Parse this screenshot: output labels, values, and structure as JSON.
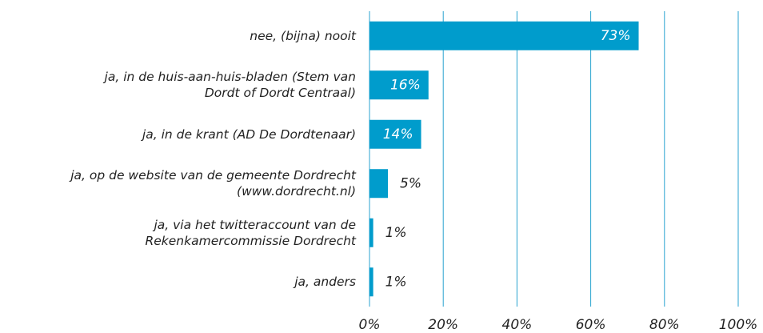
{
  "chart_data": {
    "type": "bar",
    "orientation": "horizontal",
    "categories": [
      "nee, (bijna) nooit",
      "ja, in de huis-aan-huis-bladen (Stem van\nDordt of Dordt Centraal)",
      "ja, in de krant (AD De Dordtenaar)",
      "ja, op de website van de gemeente Dordrecht\n(www.dordrecht.nl)",
      "ja, via het twitteraccount van de\nRekenkamercommissie Dordrecht",
      "ja, anders"
    ],
    "values": [
      73,
      16,
      14,
      5,
      1,
      1
    ],
    "value_labels": [
      "73%",
      "16%",
      "14%",
      "5%",
      "1%",
      "1%"
    ],
    "color": "#009ccc",
    "xlim": [
      0,
      100
    ],
    "xticks": [
      {
        "value": 0,
        "label": "0%"
      },
      {
        "value": 20,
        "label": "20%"
      },
      {
        "value": 40,
        "label": "40%"
      },
      {
        "value": 60,
        "label": "60%"
      },
      {
        "value": 80,
        "label": "80%"
      },
      {
        "value": 100,
        "label": "100%"
      }
    ],
    "grid": true
  }
}
